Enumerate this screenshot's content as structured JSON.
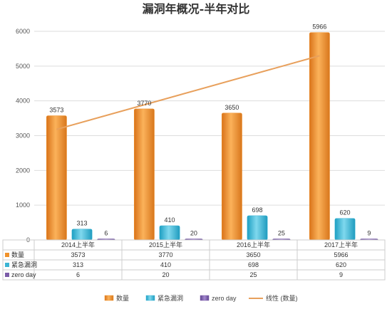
{
  "chart_data": {
    "type": "bar",
    "title": "漏洞年概况-半年对比",
    "categories": [
      "2014上半年",
      "2015上半年",
      "2016上半年",
      "2017上半年"
    ],
    "series": [
      {
        "name": "数量",
        "values": [
          3573,
          3770,
          3650,
          5966
        ],
        "color": "#f0922b"
      },
      {
        "name": "紧急漏洞",
        "values": [
          313,
          410,
          698,
          620
        ],
        "color": "#3cb4d4"
      },
      {
        "name": "zero day",
        "values": [
          6,
          20,
          25,
          9
        ],
        "color": "#7b5ca8"
      }
    ],
    "trendline": {
      "name": "线性 (数量)",
      "of_series": "数量",
      "type": "linear",
      "color": "#e8a05c"
    },
    "ylim": [
      0,
      6000
    ],
    "yticks": [
      0,
      1000,
      2000,
      3000,
      4000,
      5000,
      6000
    ],
    "grid": true,
    "legend": "bottom",
    "data_table": true
  }
}
